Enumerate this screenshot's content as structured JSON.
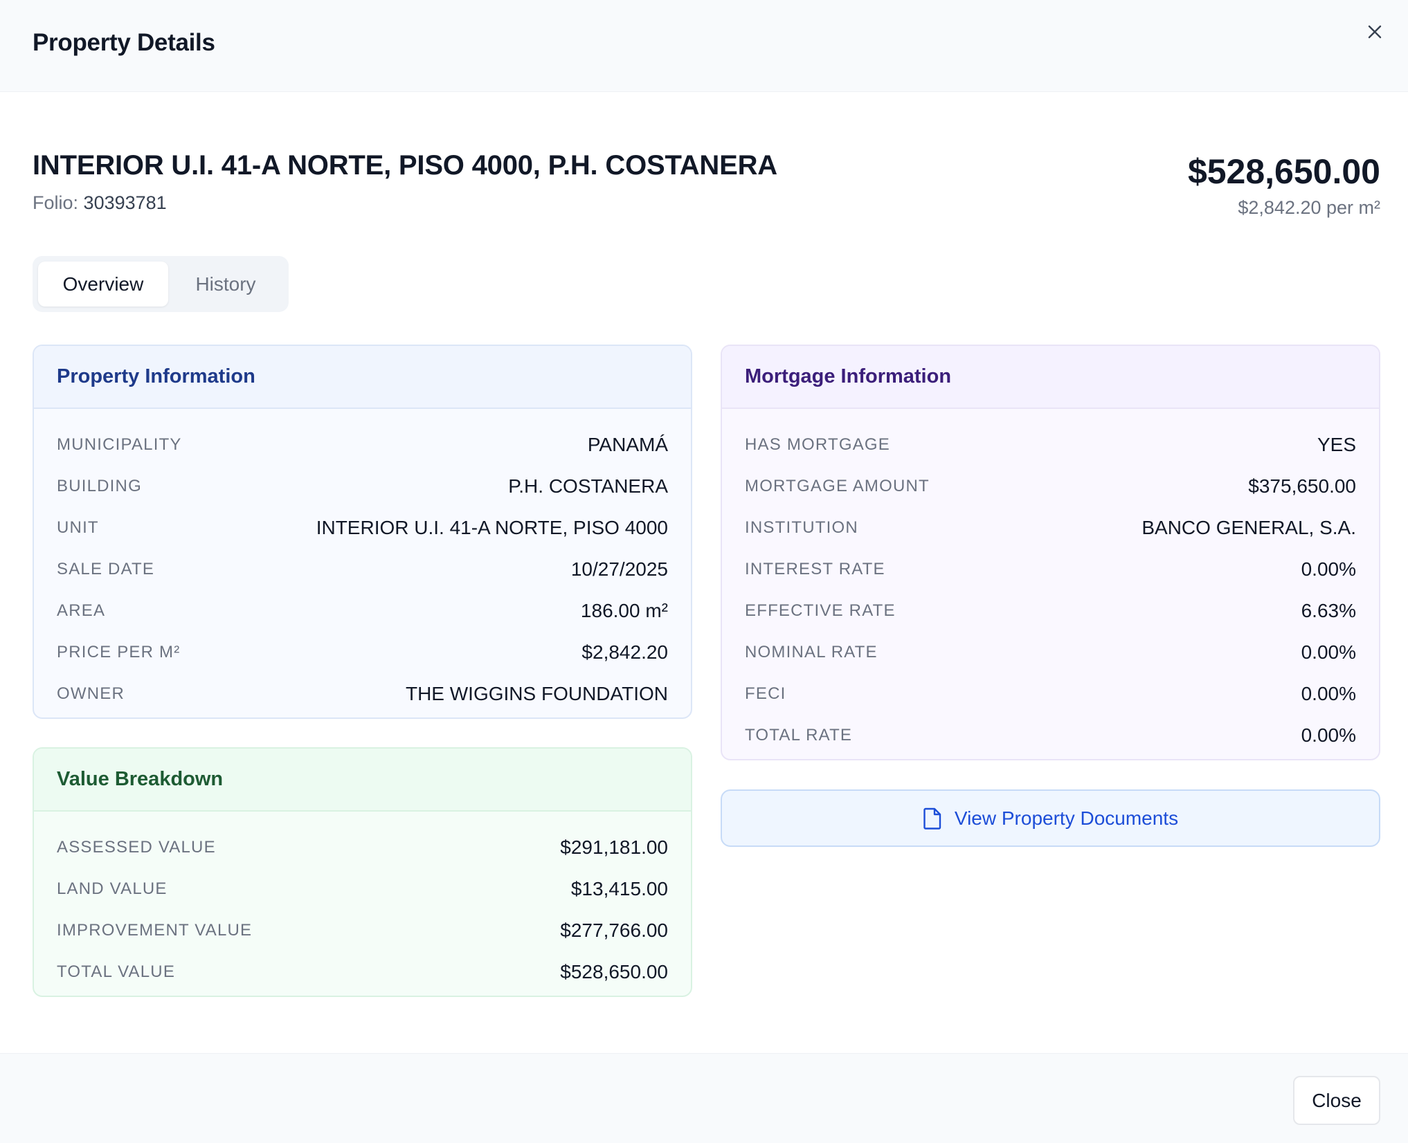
{
  "dialog": {
    "title": "Property Details",
    "close_icon": "close-icon"
  },
  "property": {
    "title": "INTERIOR U.I. 41-A NORTE, PISO 4000, P.H. COSTANERA",
    "folio_label": "Folio:",
    "folio_value": "30393781",
    "price": "$528,650.00",
    "price_per_m2": "$2,842.20 per m²"
  },
  "tabs": [
    {
      "label": "Overview",
      "active": true
    },
    {
      "label": "History",
      "active": false
    }
  ],
  "property_info": {
    "title": "Property Information",
    "rows": [
      {
        "label": "MUNICIPALITY",
        "value": "PANAMÁ"
      },
      {
        "label": "BUILDING",
        "value": "P.H. COSTANERA"
      },
      {
        "label": "UNIT",
        "value": "INTERIOR U.I. 41-A NORTE, PISO 4000"
      },
      {
        "label": "SALE DATE",
        "value": "10/27/2025"
      },
      {
        "label": "AREA",
        "value": "186.00 m²"
      },
      {
        "label": "PRICE PER M²",
        "value": "$2,842.20"
      },
      {
        "label": "OWNER",
        "value": "THE WIGGINS FOUNDATION"
      }
    ]
  },
  "mortgage_info": {
    "title": "Mortgage Information",
    "rows": [
      {
        "label": "HAS MORTGAGE",
        "value": "YES"
      },
      {
        "label": "MORTGAGE AMOUNT",
        "value": "$375,650.00"
      },
      {
        "label": "INSTITUTION",
        "value": "BANCO GENERAL, S.A."
      },
      {
        "label": "INTEREST RATE",
        "value": "0.00%"
      },
      {
        "label": "EFFECTIVE RATE",
        "value": "6.63%"
      },
      {
        "label": "NOMINAL RATE",
        "value": "0.00%"
      },
      {
        "label": "FECI",
        "value": "0.00%"
      },
      {
        "label": "TOTAL RATE",
        "value": "0.00%"
      }
    ]
  },
  "value_breakdown": {
    "title": "Value Breakdown",
    "rows": [
      {
        "label": "ASSESSED VALUE",
        "value": "$291,181.00"
      },
      {
        "label": "LAND VALUE",
        "value": "$13,415.00"
      },
      {
        "label": "IMPROVEMENT VALUE",
        "value": "$277,766.00"
      },
      {
        "label": "TOTAL VALUE",
        "value": "$528,650.00"
      }
    ]
  },
  "documents_button": {
    "label": "View Property Documents",
    "icon": "document-icon"
  },
  "footer": {
    "close_label": "Close"
  },
  "colors": {
    "property_accent": "#1e3a8a",
    "mortgage_accent": "#3b1e7a",
    "value_accent": "#1d5b33",
    "link_blue": "#1d4ed8"
  }
}
